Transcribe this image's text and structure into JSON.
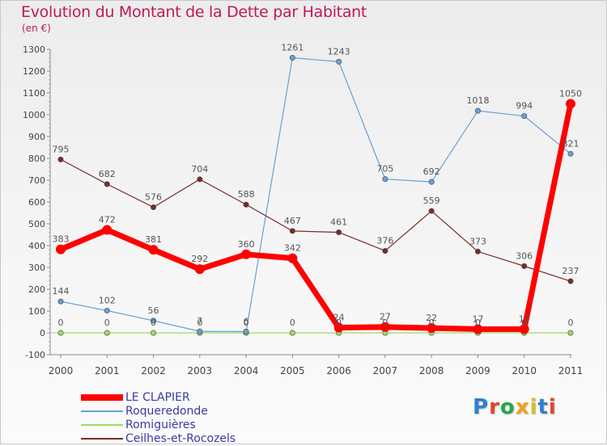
{
  "title": "Evolution du Montant de la Dette par Habitant",
  "subtitle": "(en €)",
  "logo": "Proxiti",
  "chart_data": {
    "type": "line",
    "x": [
      "2000",
      "2001",
      "2002",
      "2003",
      "2004",
      "2005",
      "2006",
      "2007",
      "2008",
      "2009",
      "2010",
      "2011"
    ],
    "ylim": [
      -100,
      1300
    ],
    "yticks": [
      -100,
      0,
      100,
      200,
      300,
      400,
      500,
      600,
      700,
      800,
      900,
      1000,
      1100,
      1200,
      1300
    ],
    "grid": false,
    "legend_position": "bottom-left",
    "series": [
      {
        "name": "LE CLAPIER",
        "color": "#ff0000",
        "values": [
          383,
          472,
          381,
          292,
          360,
          342,
          24,
          27,
          22,
          17,
          17,
          1050
        ],
        "labels": [
          "383",
          "472",
          "381",
          "292",
          "360",
          "342",
          "24",
          "27",
          "22",
          "17",
          "17",
          "1050"
        ]
      },
      {
        "name": "Roqueredonde",
        "color": "#6a9fd4",
        "values": [
          144,
          102,
          56,
          7,
          6,
          1261,
          1243,
          705,
          692,
          1018,
          994,
          821
        ],
        "labels": [
          "144",
          "102",
          "56",
          "7",
          "6",
          "1261",
          "1243",
          "705",
          "692",
          "1018",
          "994",
          "821"
        ]
      },
      {
        "name": "Romiguières",
        "color": "#99dd66",
        "values": [
          0,
          0,
          0,
          0,
          0,
          0,
          0,
          0,
          0,
          0,
          0,
          0
        ],
        "labels": [
          "0",
          "0",
          "0",
          "0",
          "0",
          "0",
          "0",
          "0",
          "0",
          "0",
          "0",
          "0"
        ]
      },
      {
        "name": "Ceilhes-et-Rocozels",
        "color": "#7a2a2a",
        "values": [
          795,
          682,
          576,
          704,
          588,
          467,
          461,
          376,
          559,
          373,
          306,
          237
        ],
        "labels": [
          "795",
          "682",
          "576",
          "704",
          "588",
          "467",
          "461",
          "376",
          "559",
          "373",
          "306",
          "237"
        ]
      }
    ]
  }
}
